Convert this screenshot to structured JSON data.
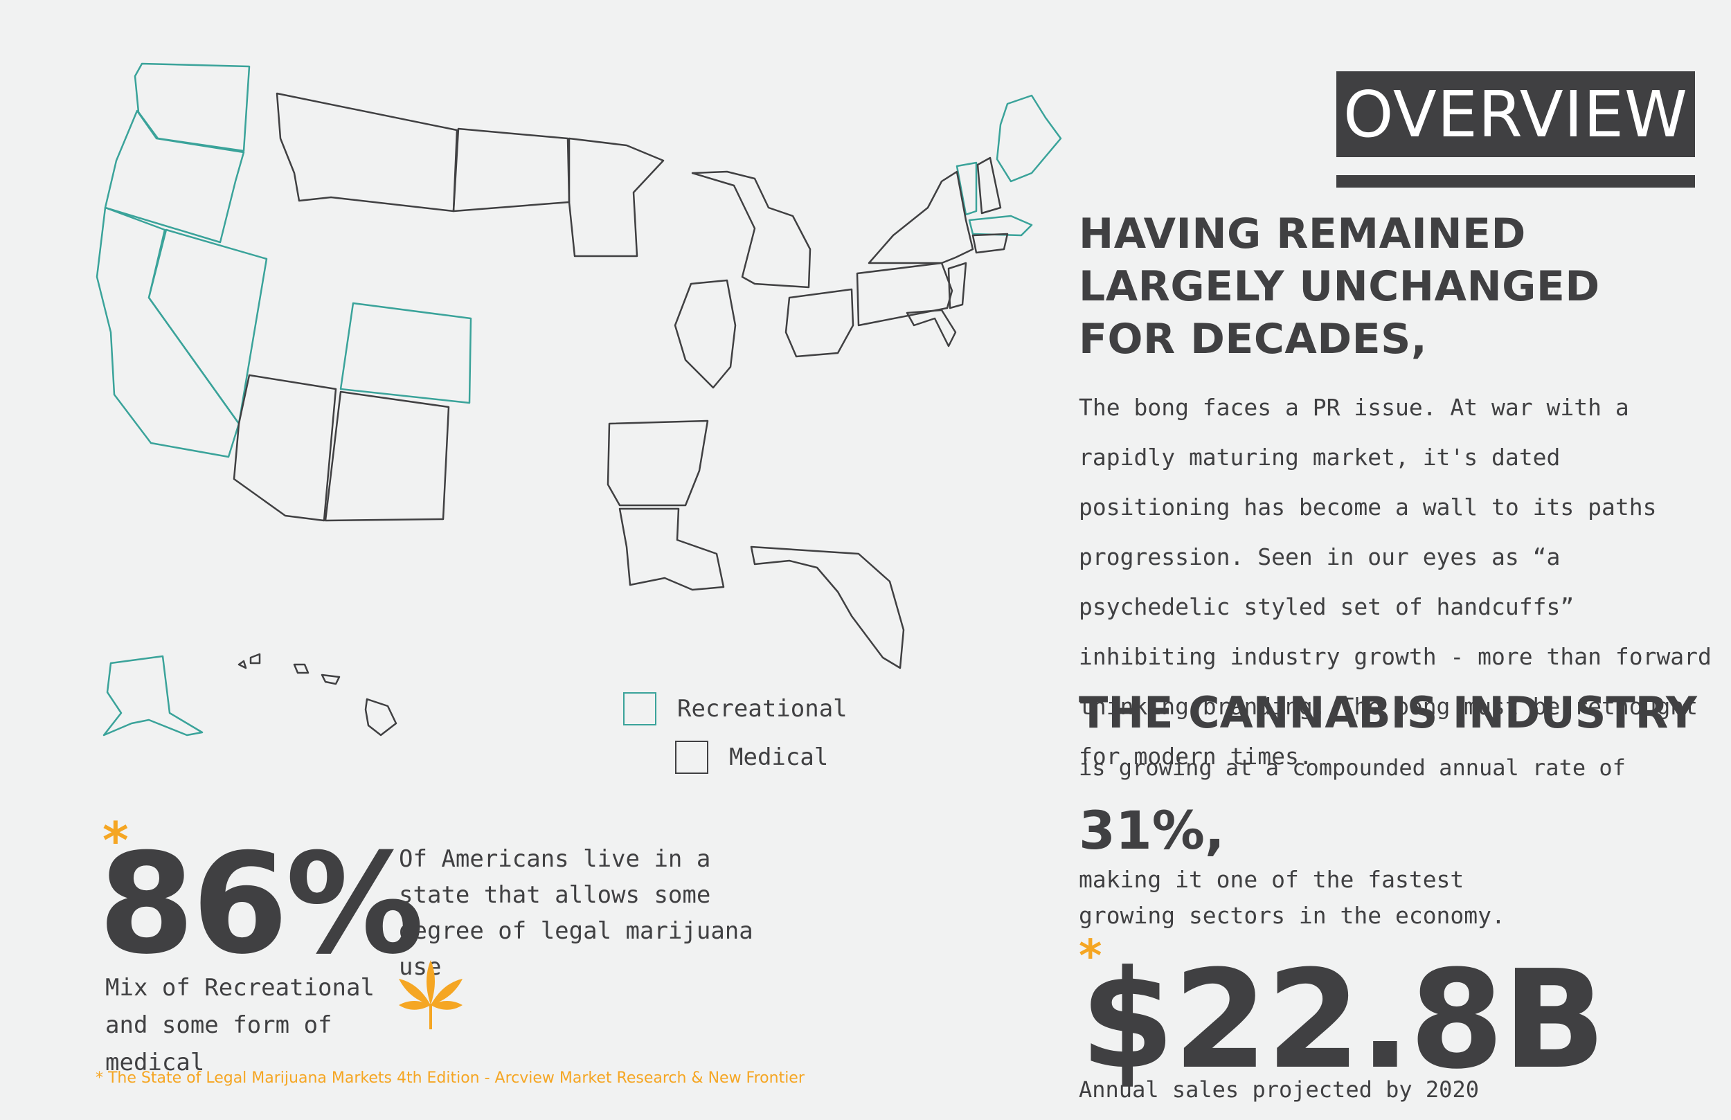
{
  "colors": {
    "background": "#f1f2f2",
    "text": "#404042",
    "recreational": "#3aa39a",
    "medical": "#404042",
    "accent": "#f5a623"
  },
  "legend": {
    "recreational": "Recreational",
    "medical": "Medical"
  },
  "overview": {
    "title": "OVERVIEW",
    "headline": "HAVING REMAINED LARGELY UNCHANGED FOR DECADES,",
    "body": "The bong faces a PR issue. At war with a rapidly maturing market, it's dated positioning has become a wall to its paths progression. Seen in our eyes as “a psychedelic styled set of handcuffs” inhibiting industry growth - more than forward thinking branding. The bong must be rethought for modern times."
  },
  "industry": {
    "heading": "THE CANNABIS INDUSTRY",
    "subheading": "is growing at a compounded annual rate of",
    "rate": "31%,",
    "rate_note": "making it one of the fastest growing sectors in the economy."
  },
  "sales": {
    "asterisk": "*",
    "value": "$22.8B",
    "note": "Annual sales projected by 2020"
  },
  "stat": {
    "asterisk": "*",
    "value": "86%",
    "description": "Of Americans live in a state that allows some degree of legal marijuana use",
    "mix": "Mix of Recreational and some form of medical",
    "leaf_icon": "cannabis-leaf-icon"
  },
  "footnote": "* The State of Legal Marijuana Markets 4th Edition - Arcview Market Research & New Frontier"
}
